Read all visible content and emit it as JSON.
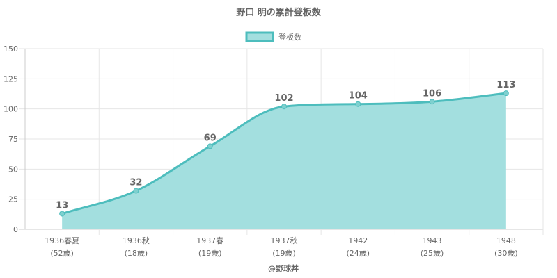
{
  "chart_data": {
    "type": "area",
    "title": "野口 明の累計登板数",
    "legend": {
      "label": "登板数",
      "position": "top-center"
    },
    "categories": [
      [
        "1936春夏",
        "(52歳)"
      ],
      [
        "1936秋",
        "(18歳)"
      ],
      [
        "1937春",
        "(19歳)"
      ],
      [
        "1937秋",
        "(19歳)"
      ],
      [
        "1942",
        "(24歳)"
      ],
      [
        "1943",
        "(25歳)"
      ],
      [
        "1948",
        "(30歳)"
      ]
    ],
    "series": [
      {
        "name": "登板数",
        "values": [
          13,
          32,
          69,
          102,
          104,
          106,
          113
        ]
      }
    ],
    "ylim": [
      0,
      150
    ],
    "yticks": [
      0,
      25,
      50,
      75,
      100,
      125,
      150
    ],
    "grid": true,
    "colors": {
      "line": "#4dbdbd",
      "fill": "#a3dfdf",
      "point": "#7fd0cf",
      "grid": "#e6e6e6",
      "axis": "#cccccc",
      "text": "#666666"
    }
  },
  "credit": "@野球丼"
}
